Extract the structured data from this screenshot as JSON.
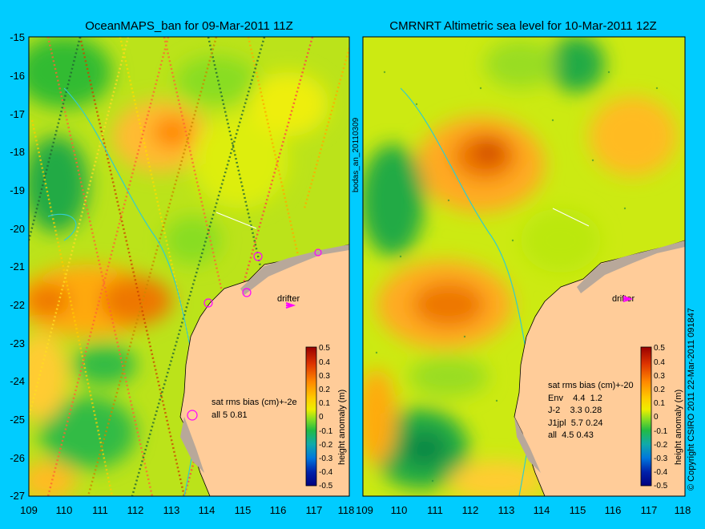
{
  "left_panel": {
    "title": "OceanMAPS_ban for 09-Mar-2011 11Z",
    "y_ticks": [
      "-15",
      "-16",
      "-17",
      "-18",
      "-19",
      "-20",
      "-21",
      "-22",
      "-23",
      "-24",
      "-25",
      "-26",
      "-27"
    ],
    "x_ticks": [
      "109",
      "110",
      "111",
      "112",
      "113",
      "114",
      "115",
      "116",
      "117",
      "118"
    ],
    "stats_header": "sat rms bias (cm)+-2e",
    "stats_rows": [
      "all 5 0.81"
    ],
    "drifter_label": "drifter",
    "colorbar_ticks": [
      "0.5",
      "0.4",
      "0.3",
      "0.2",
      "0.1",
      "0",
      "-0.1",
      "-0.2",
      "-0.3",
      "-0.4",
      "-0.5"
    ],
    "colorbar_label": "height anomaly (m)"
  },
  "right_panel": {
    "title": "CMRNRT Altimetric sea level  for 10-Mar-2011 12Z",
    "x_ticks": [
      "109",
      "110",
      "111",
      "112",
      "113",
      "114",
      "115",
      "116",
      "117",
      "118"
    ],
    "stats_header": "sat rms bias (cm)+-20",
    "stats_rows": [
      "Env    4.4  1.2",
      "J-2    3.3 0.28",
      "J1jpl  5.7 0.24",
      "all  4.5 0.43"
    ],
    "drifter_label": "drifter",
    "colorbar_ticks": [
      "0.5",
      "0.4",
      "0.3",
      "0.2",
      "0.1",
      "0",
      "-0.1",
      "-0.2",
      "-0.3",
      "-0.4",
      "-0.5"
    ],
    "colorbar_label": "height anomaly (m)"
  },
  "side_label": "bodas_an_20110309",
  "right_margin_label": "© Copyright CSIRO 2011    22-Mar-2011 091847",
  "colors": {
    "background": "#00ccff",
    "land": "#ffcc99",
    "shelf": "#b8a89a",
    "anomaly_low": "#00007f",
    "anomaly_zero": "#66dd22",
    "anomaly_high": "#990000",
    "drifter": "#ff00ff"
  }
}
